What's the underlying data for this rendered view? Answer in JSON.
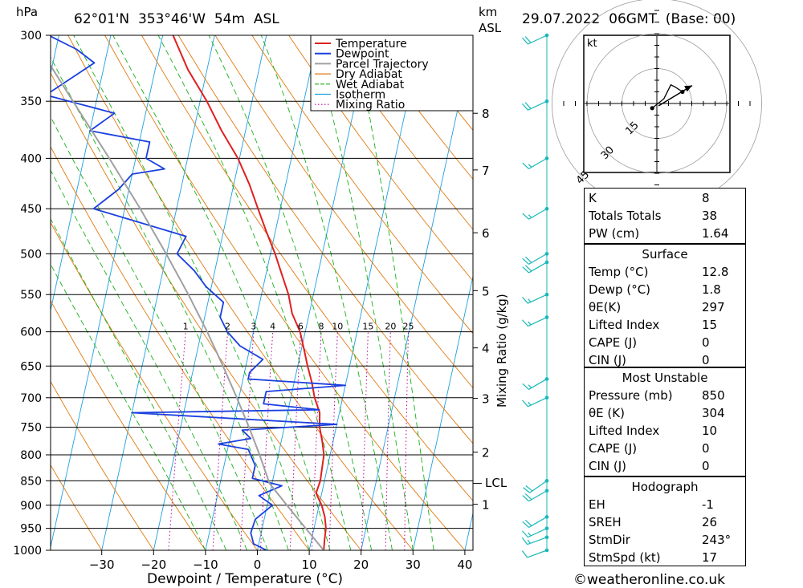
{
  "header": {
    "pressure_unit": "hPa",
    "location": "62°01'N  353°46'W  54m  ASL",
    "km_label": "km",
    "asl_label": "ASL",
    "datetime": "29.07.2022  06GMT  (Base: 00)"
  },
  "chart_data": {
    "type": "line",
    "title": "62°01'N  353°46'W  54m  ASL",
    "xlabel": "Dewpoint / Temperature (°C)",
    "ylabel": "hPa",
    "xlim": [
      -40,
      40
    ],
    "ylim": [
      1000,
      300
    ],
    "y_scale": "log",
    "x_ticks": [
      -30,
      -20,
      -10,
      0,
      10,
      20,
      30,
      40
    ],
    "y_ticks": [
      300,
      350,
      400,
      450,
      500,
      550,
      600,
      650,
      700,
      750,
      800,
      850,
      900,
      950,
      1000
    ],
    "skew": "skew-T",
    "km_ticks": [
      {
        "label": "8",
        "p": 360
      },
      {
        "label": "7",
        "p": 411
      },
      {
        "label": "6",
        "p": 476
      },
      {
        "label": "5",
        "p": 545
      },
      {
        "label": "4",
        "p": 623
      },
      {
        "label": "3",
        "p": 701
      },
      {
        "label": "2",
        "p": 795
      },
      {
        "label": "1",
        "p": 898
      }
    ],
    "lcl": {
      "label": "LCL",
      "p": 855
    },
    "mixing_ratio_axis_label": "Mixing Ratio (g/kg)",
    "mixing_ratio_values": [
      1,
      2,
      3,
      4,
      6,
      8,
      10,
      15,
      20,
      25
    ],
    "legend": [
      "Temperature",
      "Dewpoint",
      "Parcel Trajectory",
      "Dry Adiabat",
      "Wet Adiabat",
      "Isotherm",
      "Mixing Ratio"
    ],
    "legend_position": "top-right",
    "colors": {
      "temperature": "#e02020",
      "dewpoint": "#1a3fe0",
      "parcel": "#a0a0a0",
      "dry_adiabat": "#e07a10",
      "wet_adiabat": "#19b019",
      "isotherm": "#1ea0e0",
      "mixing_ratio": "#c0009a"
    },
    "series": [
      {
        "name": "Temperature",
        "points": [
          [
            1000,
            12.8
          ],
          [
            975,
            12.5
          ],
          [
            950,
            12.3
          ],
          [
            925,
            11.6
          ],
          [
            900,
            10.5
          ],
          [
            875,
            8.9
          ],
          [
            850,
            9.2
          ],
          [
            825,
            9.0
          ],
          [
            800,
            8.8
          ],
          [
            775,
            7.9
          ],
          [
            750,
            6.8
          ],
          [
            725,
            6.2
          ],
          [
            700,
            4.6
          ],
          [
            675,
            3.4
          ],
          [
            650,
            1.9
          ],
          [
            625,
            0.5
          ],
          [
            600,
            -1.0
          ],
          [
            575,
            -3.3
          ],
          [
            550,
            -4.8
          ],
          [
            525,
            -6.9
          ],
          [
            500,
            -9.1
          ],
          [
            475,
            -11.7
          ],
          [
            450,
            -14.3
          ],
          [
            425,
            -17.0
          ],
          [
            400,
            -20.3
          ],
          [
            375,
            -24.6
          ],
          [
            350,
            -28.7
          ],
          [
            325,
            -33.7
          ],
          [
            300,
            -38.0
          ]
        ]
      },
      {
        "name": "Dewpoint",
        "points": [
          [
            1000,
            1.8
          ],
          [
            985,
            -1.0
          ],
          [
            960,
            -2.0
          ],
          [
            930,
            -1.7
          ],
          [
            900,
            1.0
          ],
          [
            880,
            -2.0
          ],
          [
            860,
            2.0
          ],
          [
            845,
            -4.0
          ],
          [
            820,
            -4.0
          ],
          [
            790,
            -6.0
          ],
          [
            780,
            -12.0
          ],
          [
            770,
            -6.0
          ],
          [
            755,
            -8.0
          ],
          [
            745,
            10.0
          ],
          [
            735,
            -10.0
          ],
          [
            725,
            -30.0
          ],
          [
            720,
            6.0
          ],
          [
            710,
            -5.0
          ],
          [
            700,
            -5.0
          ],
          [
            690,
            -5.0
          ],
          [
            680,
            10.0
          ],
          [
            670,
            -9.0
          ],
          [
            660,
            -9.0
          ],
          [
            640,
            -7.0
          ],
          [
            620,
            -12.0
          ],
          [
            600,
            -15.0
          ],
          [
            580,
            -17.0
          ],
          [
            560,
            -17.0
          ],
          [
            540,
            -21.0
          ],
          [
            520,
            -24.0
          ],
          [
            500,
            -28.0
          ],
          [
            480,
            -27.0
          ],
          [
            450,
            -46.0
          ],
          [
            430,
            -42.0
          ],
          [
            415,
            -40.0
          ],
          [
            410,
            -34.0
          ],
          [
            400,
            -38.0
          ],
          [
            385,
            -38.0
          ],
          [
            375,
            -50.0
          ],
          [
            360,
            -46.0
          ],
          [
            345,
            -60.0
          ],
          [
            320,
            -52.0
          ],
          [
            310,
            -56.0
          ],
          [
            300,
            -62.0
          ]
        ]
      },
      {
        "name": "Parcel Trajectory",
        "points": [
          [
            1000,
            12.8
          ],
          [
            950,
            8.4
          ],
          [
            900,
            3.8
          ],
          [
            855,
            -0.5
          ],
          [
            800,
            -3.6
          ],
          [
            750,
            -6.8
          ],
          [
            700,
            -10.4
          ],
          [
            650,
            -14.4
          ],
          [
            600,
            -18.9
          ],
          [
            550,
            -24.1
          ],
          [
            500,
            -30.1
          ],
          [
            450,
            -37.0
          ],
          [
            400,
            -45.1
          ],
          [
            350,
            -54.5
          ],
          [
            310,
            -63.0
          ]
        ]
      }
    ]
  },
  "wind_barbs": {
    "color": "#17b8b8",
    "levels": [
      {
        "p": 1000,
        "dir": 250,
        "kt": 12
      },
      {
        "p": 970,
        "dir": 250,
        "kt": 16
      },
      {
        "p": 950,
        "dir": 245,
        "kt": 18
      },
      {
        "p": 925,
        "dir": 240,
        "kt": 20
      },
      {
        "p": 870,
        "dir": 240,
        "kt": 20
      },
      {
        "p": 850,
        "dir": 235,
        "kt": 20
      },
      {
        "p": 700,
        "dir": 245,
        "kt": 18
      },
      {
        "p": 670,
        "dir": 240,
        "kt": 16
      },
      {
        "p": 580,
        "dir": 245,
        "kt": 15
      },
      {
        "p": 550,
        "dir": 245,
        "kt": 18
      },
      {
        "p": 510,
        "dir": 240,
        "kt": 22
      },
      {
        "p": 500,
        "dir": 240,
        "kt": 20
      },
      {
        "p": 450,
        "dir": 240,
        "kt": 15
      },
      {
        "p": 400,
        "dir": 240,
        "kt": 15
      },
      {
        "p": 350,
        "dir": 245,
        "kt": 20
      },
      {
        "p": 300,
        "dir": 245,
        "kt": 20
      }
    ]
  },
  "hodograph": {
    "unit_label": "kt",
    "ring_labels": [
      "15",
      "30",
      "45"
    ],
    "storm_dir": 243,
    "storm_spd": 17,
    "points_kt": [
      [
        -2,
        -2
      ],
      [
        3,
        2
      ],
      [
        6,
        8
      ],
      [
        8,
        7
      ],
      [
        11,
        5
      ]
    ]
  },
  "indices": {
    "general": [
      {
        "label": "K",
        "value": "8"
      },
      {
        "label": "Totals Totals",
        "value": "38"
      },
      {
        "label": "PW (cm)",
        "value": "1.64"
      }
    ],
    "surface_title": "Surface",
    "surface": [
      {
        "label": "Temp (°C)",
        "value": "12.8"
      },
      {
        "label": "Dewp (°C)",
        "value": "1.8"
      },
      {
        "label": "θE(K)",
        "value": "297"
      },
      {
        "label": "Lifted Index",
        "value": "15"
      },
      {
        "label": "CAPE (J)",
        "value": "0"
      },
      {
        "label": "CIN (J)",
        "value": "0"
      }
    ],
    "unstable_title": "Most Unstable",
    "unstable": [
      {
        "label": "Pressure (mb)",
        "value": "850"
      },
      {
        "label": "θE (K)",
        "value": "304"
      },
      {
        "label": "Lifted Index",
        "value": "10"
      },
      {
        "label": "CAPE (J)",
        "value": "0"
      },
      {
        "label": "CIN (J)",
        "value": "0"
      }
    ],
    "hodo_title": "Hodograph",
    "hodo": [
      {
        "label": "EH",
        "value": "-1"
      },
      {
        "label": "SREH",
        "value": "26"
      },
      {
        "label": "StmDir",
        "value": "243°"
      },
      {
        "label": "StmSpd (kt)",
        "value": "17"
      }
    ]
  },
  "footer": {
    "copyright": "©weatheronline.co.uk"
  }
}
